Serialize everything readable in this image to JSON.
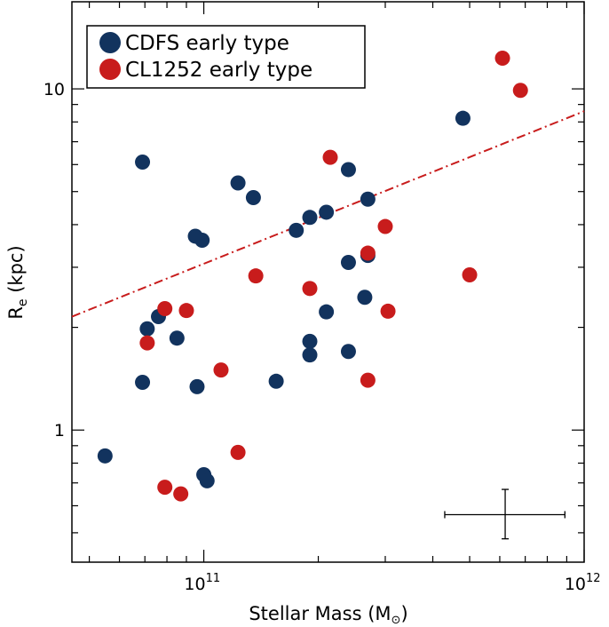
{
  "chart_data": {
    "type": "scatter",
    "x_scale": "log",
    "y_scale": "log",
    "xlim": [
      45000000000,
      1000000000000
    ],
    "ylim": [
      0.41,
      18
    ],
    "xlabel_main": "Stellar Mass (M",
    "xlabel_sub": "⊙",
    "xlabel_end": ")",
    "ylabel_main": "R",
    "ylabel_sub": "e",
    "ylabel_end": " (kpc)",
    "x_ticks": [
      {
        "base": "10",
        "exp": "11",
        "value": 100000000000
      },
      {
        "base": "10",
        "exp": "12",
        "value": 1000000000000
      }
    ],
    "y_ticks": [
      {
        "label": "1",
        "value": 1
      },
      {
        "label": "10",
        "value": 10
      }
    ],
    "legend_position": "top-left",
    "series": [
      {
        "name": "CDFS early type",
        "color": "#12335e",
        "points": [
          [
            55000000000,
            0.84
          ],
          [
            69000000000,
            6.1
          ],
          [
            69000000000,
            1.38
          ],
          [
            71000000000,
            1.98
          ],
          [
            76000000000,
            2.15
          ],
          [
            85000000000,
            1.86
          ],
          [
            95000000000,
            3.7
          ],
          [
            99000000000,
            3.6
          ],
          [
            96000000000,
            1.34
          ],
          [
            100000000000,
            0.74
          ],
          [
            102000000000,
            0.71
          ],
          [
            123000000000,
            5.3
          ],
          [
            135000000000,
            4.8
          ],
          [
            155000000000,
            1.39
          ],
          [
            175000000000,
            3.85
          ],
          [
            190000000000,
            4.2
          ],
          [
            190000000000,
            1.82
          ],
          [
            190000000000,
            1.66
          ],
          [
            210000000000,
            4.35
          ],
          [
            210000000000,
            2.22
          ],
          [
            240000000000,
            5.8
          ],
          [
            240000000000,
            3.1
          ],
          [
            240000000000,
            1.7
          ],
          [
            270000000000,
            4.75
          ],
          [
            270000000000,
            3.25
          ],
          [
            265000000000,
            2.45
          ],
          [
            480000000000,
            8.2
          ]
        ]
      },
      {
        "name": "CL1252 early type",
        "color": "#c81c1c",
        "points": [
          [
            71000000000,
            1.8
          ],
          [
            79000000000,
            2.27
          ],
          [
            79000000000,
            0.68
          ],
          [
            87000000000,
            0.65
          ],
          [
            90000000000,
            2.24
          ],
          [
            111000000000,
            1.5
          ],
          [
            123000000000,
            0.86
          ],
          [
            137000000000,
            2.83
          ],
          [
            190000000000,
            2.6
          ],
          [
            215000000000,
            6.3
          ],
          [
            270000000000,
            3.3
          ],
          [
            270000000000,
            1.4
          ],
          [
            300000000000,
            3.95
          ],
          [
            305000000000,
            2.23
          ],
          [
            500000000000,
            2.85
          ],
          [
            610000000000,
            12.3
          ],
          [
            680000000000,
            9.9
          ]
        ]
      }
    ],
    "fit_line": {
      "style": "dash-dot",
      "color": "#c81c1c",
      "x": [
        45000000000,
        1000000000000
      ],
      "y": [
        2.15,
        8.6
      ]
    },
    "error_bar": {
      "x_center": 620000000000,
      "x_lo": 430000000000,
      "x_hi": 890000000000,
      "y_center": 0.565,
      "y_lo": 0.48,
      "y_hi": 0.67
    }
  }
}
